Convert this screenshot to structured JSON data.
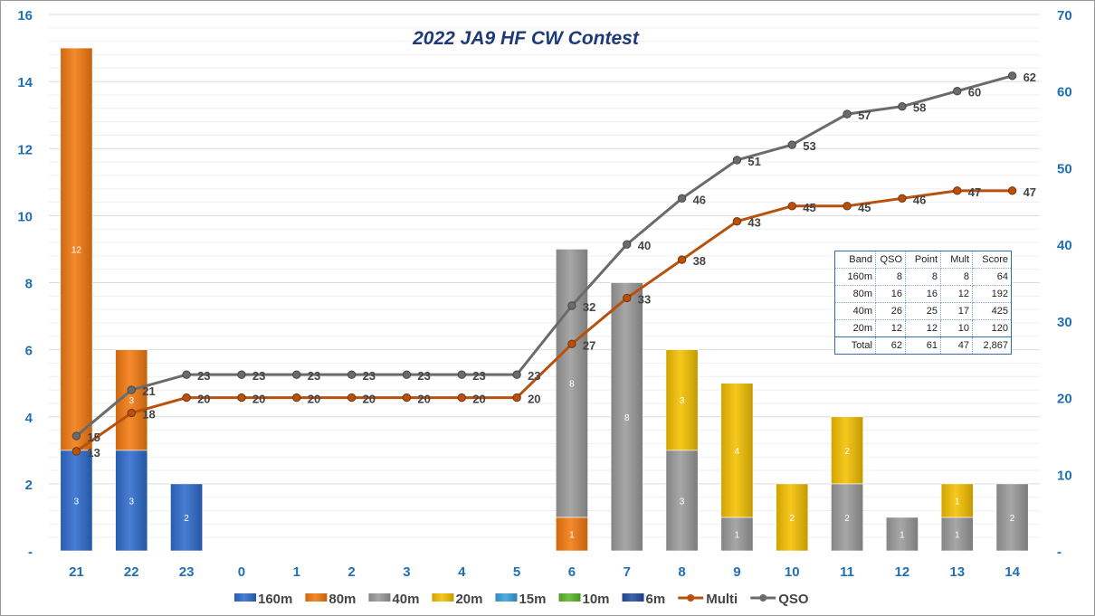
{
  "chart_data": {
    "type": "bar",
    "title": "2022 JA9 HF CW Contest",
    "categories": [
      "21",
      "22",
      "23",
      "0",
      "1",
      "2",
      "3",
      "4",
      "5",
      "6",
      "7",
      "8",
      "9",
      "10",
      "11",
      "12",
      "13",
      "14"
    ],
    "stacked": true,
    "y_left": {
      "ylim": [
        0,
        16
      ],
      "ticks": [
        "-",
        "2",
        "4",
        "6",
        "8",
        "10",
        "12",
        "14",
        "16"
      ]
    },
    "y_right": {
      "ylim": [
        0,
        70
      ],
      "ticks": [
        "-",
        "10",
        "20",
        "30",
        "40",
        "50",
        "60",
        "70"
      ]
    },
    "grid": true,
    "legend_position": "bottom",
    "series": [
      {
        "name": "160m",
        "kind": "bar",
        "color": "#2f6ccd",
        "values": [
          3,
          3,
          2,
          0,
          0,
          0,
          0,
          0,
          0,
          0,
          0,
          0,
          0,
          0,
          0,
          0,
          0,
          0
        ]
      },
      {
        "name": "80m",
        "kind": "bar",
        "color": "#f47a10",
        "values": [
          12,
          3,
          0,
          0,
          0,
          0,
          0,
          0,
          0,
          1,
          0,
          0,
          0,
          0,
          0,
          0,
          0,
          0
        ]
      },
      {
        "name": "40m",
        "kind": "bar",
        "color": "#9b9b9b",
        "values": [
          0,
          0,
          0,
          0,
          0,
          0,
          0,
          0,
          0,
          8,
          8,
          3,
          1,
          0,
          2,
          1,
          1,
          2
        ]
      },
      {
        "name": "20m",
        "kind": "bar",
        "color": "#f5c000",
        "values": [
          0,
          0,
          0,
          0,
          0,
          0,
          0,
          0,
          0,
          0,
          0,
          3,
          4,
          2,
          2,
          0,
          1,
          0
        ]
      },
      {
        "name": "15m",
        "kind": "bar",
        "color": "#3ca3dc",
        "values": [
          0,
          0,
          0,
          0,
          0,
          0,
          0,
          0,
          0,
          0,
          0,
          0,
          0,
          0,
          0,
          0,
          0,
          0
        ]
      },
      {
        "name": "10m",
        "kind": "bar",
        "color": "#5fb82e",
        "values": [
          0,
          0,
          0,
          0,
          0,
          0,
          0,
          0,
          0,
          0,
          0,
          0,
          0,
          0,
          0,
          0,
          0,
          0
        ]
      },
      {
        "name": "6m",
        "kind": "bar",
        "color": "#24509e",
        "values": [
          0,
          0,
          0,
          0,
          0,
          0,
          0,
          0,
          0,
          0,
          0,
          0,
          0,
          0,
          0,
          0,
          0,
          0
        ]
      },
      {
        "name": "Multi",
        "kind": "line",
        "axis": "right",
        "color": "#b8500e",
        "values": [
          13,
          18,
          20,
          20,
          20,
          20,
          20,
          20,
          20,
          27,
          33,
          38,
          43,
          45,
          45,
          46,
          47,
          47
        ]
      },
      {
        "name": "QSO",
        "kind": "line",
        "axis": "right",
        "color": "#6b6b6b",
        "values": [
          15,
          21,
          23,
          23,
          23,
          23,
          23,
          23,
          23,
          32,
          40,
          46,
          51,
          53,
          57,
          58,
          60,
          62
        ]
      }
    ]
  },
  "summary_table": {
    "header": [
      "Band",
      "QSO",
      "Point",
      "Mult",
      "Score"
    ],
    "rows": [
      [
        "160m",
        "8",
        "8",
        "8",
        "64"
      ],
      [
        "80m",
        "16",
        "16",
        "12",
        "192"
      ],
      [
        "40m",
        "26",
        "25",
        "17",
        "425"
      ],
      [
        "20m",
        "12",
        "12",
        "10",
        "120"
      ]
    ],
    "total": [
      "Total",
      "62",
      "61",
      "47",
      "2,867"
    ]
  },
  "colors": {
    "axis_label": "#1f6fb5",
    "title": "#1f3a7a",
    "gridline": "#e6e6e6"
  }
}
